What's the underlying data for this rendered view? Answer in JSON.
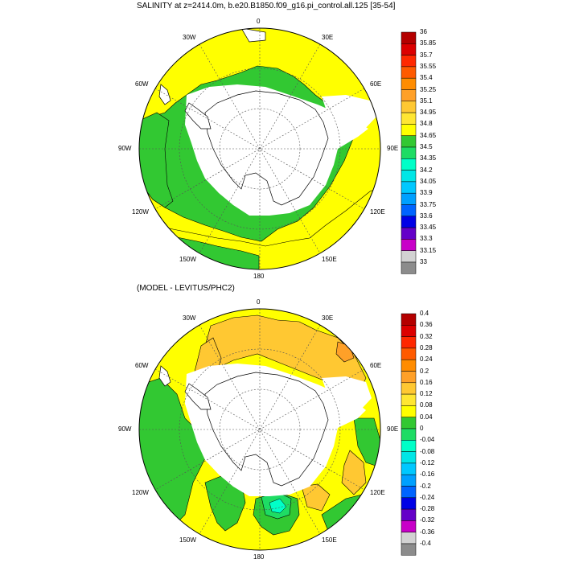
{
  "panels": [
    {
      "id": "top",
      "title": "SALINITY at z=2414.0m, b.e20.B1850.f09_g16.pi_control.all.125 [35-54]",
      "lon_labels": {
        "n": "0",
        "nne": "30E",
        "ene": "60E",
        "e": "90E",
        "ese": "120E",
        "sse": "150E",
        "s": "180",
        "ssw": "150W",
        "wsw": "120W",
        "w": "90W",
        "wnw": "60W",
        "nnw": "30W"
      },
      "colorbar": {
        "labels": [
          "36",
          "35.85",
          "35.7",
          "35.55",
          "35.4",
          "35.25",
          "35.1",
          "34.95",
          "34.8",
          "34.65",
          "34.5",
          "34.35",
          "34.2",
          "34.05",
          "33.9",
          "33.75",
          "33.6",
          "33.45",
          "33.3",
          "33.15",
          "33"
        ],
        "colors": [
          "#b40000",
          "#dc0000",
          "#ff2800",
          "#ff5a00",
          "#ff8c00",
          "#ffa028",
          "#ffc832",
          "#ffe632",
          "#ffff00",
          "#32c832",
          "#1edc64",
          "#00ffc8",
          "#00e6e6",
          "#00c8ff",
          "#00a0ff",
          "#0064ff",
          "#0000e6",
          "#6400c8",
          "#c800c8",
          "#d2d2d2",
          "#8c8c8c"
        ]
      }
    },
    {
      "id": "bottom",
      "title": "(MODEL - LEVITUS/PHC2)",
      "lon_labels": {
        "n": "0",
        "nne": "30E",
        "ene": "60E",
        "e": "90E",
        "ese": "120E",
        "sse": "150E",
        "s": "180",
        "ssw": "150W",
        "wsw": "120W",
        "w": "90W",
        "wnw": "60W",
        "nnw": "30W"
      },
      "colorbar": {
        "labels": [
          "0.4",
          "0.36",
          "0.32",
          "0.28",
          "0.24",
          "0.2",
          "0.16",
          "0.12",
          "0.08",
          "0.04",
          "0",
          "-0.04",
          "-0.08",
          "-0.12",
          "-0.16",
          "-0.2",
          "-0.24",
          "-0.28",
          "-0.32",
          "-0.36",
          "-0.4"
        ],
        "colors": [
          "#b40000",
          "#dc0000",
          "#ff2800",
          "#ff5a00",
          "#ff8c00",
          "#ffa028",
          "#ffc832",
          "#ffe632",
          "#ffff00",
          "#32c832",
          "#1edc64",
          "#00ffc8",
          "#00e6e6",
          "#00c8ff",
          "#00a0ff",
          "#0064ff",
          "#0000e6",
          "#6400c8",
          "#c800c8",
          "#d2d2d2",
          "#8c8c8c"
        ]
      }
    }
  ]
}
